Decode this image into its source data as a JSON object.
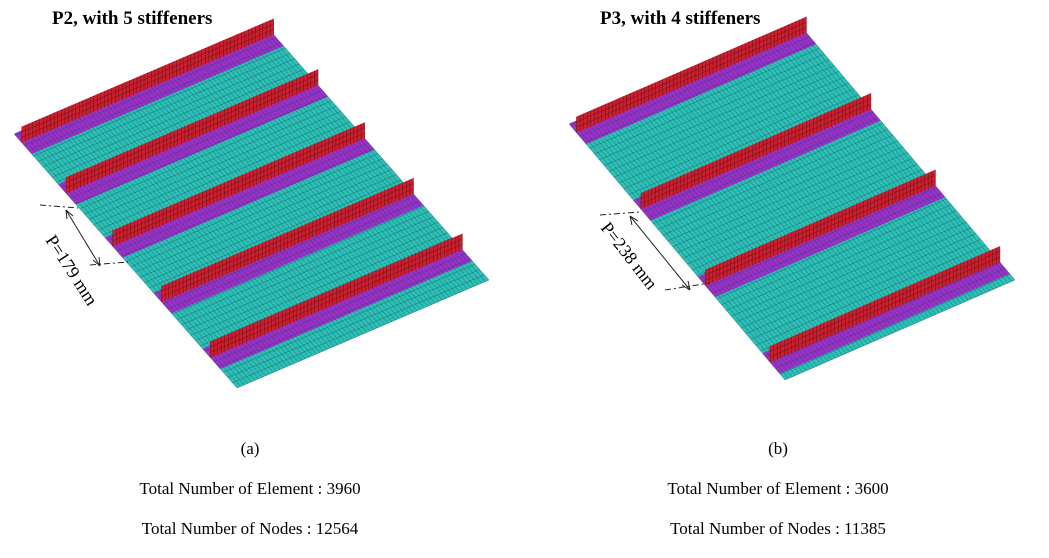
{
  "panels": [
    {
      "title": "P2, with 5 stiffeners",
      "dimension": "P=179 mm",
      "caption": "(a)",
      "elements": "Total Number of Element : 3960",
      "nodes": "Total Number of Nodes : 12564"
    },
    {
      "title": "P3, with 4 stiffeners",
      "dimension": "P=238 mm",
      "caption": "(b)",
      "elements": "Total Number of Element : 3600",
      "nodes": "Total Number of Nodes : 11385"
    }
  ]
}
